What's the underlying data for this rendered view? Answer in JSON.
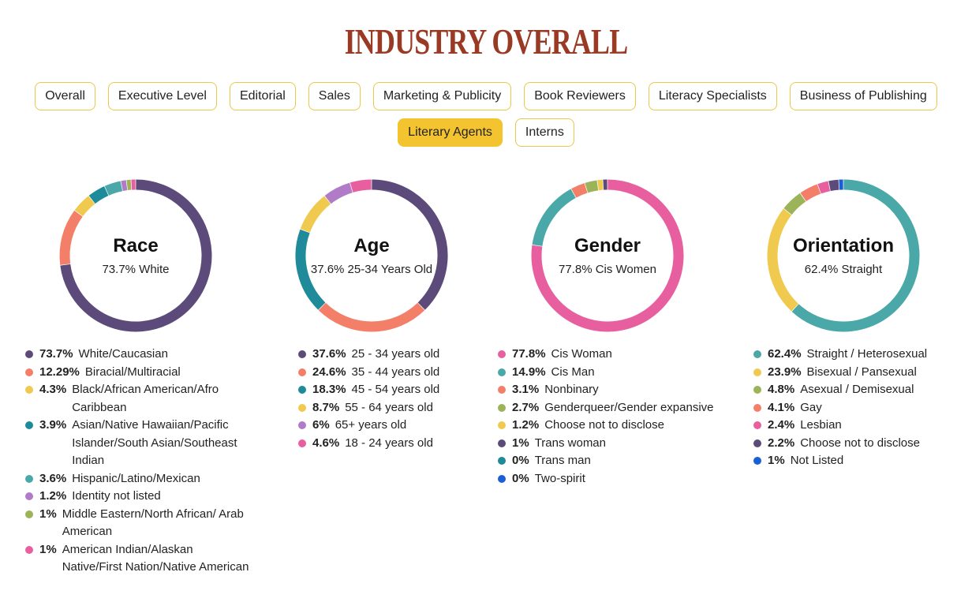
{
  "page": {
    "title": "INDUSTRY OVERALL"
  },
  "tabs": {
    "row1": [
      "Overall",
      "Executive Level",
      "Editorial",
      "Sales",
      "Marketing & Publicity",
      "Book Reviewers",
      "Literacy Specialists",
      "Business of Publishing"
    ],
    "row2": [
      "Literary Agents",
      "Interns"
    ],
    "active": "Literary Agents"
  },
  "chart_data": [
    {
      "type": "pie",
      "title": "Race",
      "subtitle": "73.7% White",
      "slices": [
        {
          "pct_label": "73.7%",
          "value": 73.7,
          "label": "White/Caucasian",
          "color": "#5c4a7a"
        },
        {
          "pct_label": "12.29%",
          "value": 12.29,
          "label": "Biracial/Multiracial",
          "color": "#f47f68"
        },
        {
          "pct_label": "4.3%",
          "value": 4.3,
          "label": "Black/African American/Afro Caribbean",
          "color": "#f0c94f"
        },
        {
          "pct_label": "3.9%",
          "value": 3.9,
          "label": "Asian/Native Hawaiian/Pacific Islander/South Asian/Southeast Indian",
          "color": "#1f8a99"
        },
        {
          "pct_label": "3.6%",
          "value": 3.6,
          "label": "Hispanic/Latino/Mexican",
          "color": "#4aa8a8"
        },
        {
          "pct_label": "1.2%",
          "value": 1.2,
          "label": "Identity not listed",
          "color": "#b07bc7"
        },
        {
          "pct_label": "1%",
          "value": 1,
          "label": "Middle Eastern/North African/ Arab American",
          "color": "#9db35a"
        },
        {
          "pct_label": "1%",
          "value": 1,
          "label": "American Indian/Alaskan Native/First Nation/Native American",
          "color": "#e85f9f"
        }
      ]
    },
    {
      "type": "pie",
      "title": "Age",
      "subtitle": "37.6% 25-34 Years Old",
      "slices": [
        {
          "pct_label": "37.6%",
          "value": 37.6,
          "label": "25 - 34 years old",
          "color": "#5c4a7a"
        },
        {
          "pct_label": "24.6%",
          "value": 24.6,
          "label": "35 - 44 years old",
          "color": "#f47f68"
        },
        {
          "pct_label": "18.3%",
          "value": 18.3,
          "label": "45 - 54 years old",
          "color": "#1f8a99"
        },
        {
          "pct_label": "8.7%",
          "value": 8.7,
          "label": "55 - 64 years old",
          "color": "#f0c94f"
        },
        {
          "pct_label": "6%",
          "value": 6,
          "label": "65+ years old",
          "color": "#b07bc7"
        },
        {
          "pct_label": "4.6%",
          "value": 4.6,
          "label": "18 - 24 years old",
          "color": "#e85f9f"
        }
      ]
    },
    {
      "type": "pie",
      "title": "Gender",
      "subtitle": "77.8% Cis Women",
      "slices": [
        {
          "pct_label": "77.8%",
          "value": 77.8,
          "label": "Cis Woman",
          "color": "#e85f9f"
        },
        {
          "pct_label": "14.9%",
          "value": 14.9,
          "label": "Cis Man",
          "color": "#4aa8a8"
        },
        {
          "pct_label": "3.1%",
          "value": 3.1,
          "label": "Nonbinary",
          "color": "#f47f68"
        },
        {
          "pct_label": "2.7%",
          "value": 2.7,
          "label": "Genderqueer/Gender expansive",
          "color": "#9db35a"
        },
        {
          "pct_label": "1.2%",
          "value": 1.2,
          "label": "Choose not to disclose",
          "color": "#f0c94f"
        },
        {
          "pct_label": "1%",
          "value": 1,
          "label": "Trans woman",
          "color": "#5c4a7a"
        },
        {
          "pct_label": "0%",
          "value": 0,
          "label": "Trans man",
          "color": "#1f8a99"
        },
        {
          "pct_label": "0%",
          "value": 0,
          "label": "Two-spirit",
          "color": "#1a5fd6"
        }
      ]
    },
    {
      "type": "pie",
      "title": "Orientation",
      "subtitle": "62.4% Straight",
      "slices": [
        {
          "pct_label": "62.4%",
          "value": 62.4,
          "label": "Straight / Heterosexual",
          "color": "#4aa8a8"
        },
        {
          "pct_label": "23.9%",
          "value": 23.9,
          "label": "Bisexual / Pansexual",
          "color": "#f0c94f"
        },
        {
          "pct_label": "4.8%",
          "value": 4.8,
          "label": "Asexual / Demisexual",
          "color": "#9db35a"
        },
        {
          "pct_label": "4.1%",
          "value": 4.1,
          "label": "Gay",
          "color": "#f47f68"
        },
        {
          "pct_label": "2.4%",
          "value": 2.4,
          "label": "Lesbian",
          "color": "#e85f9f"
        },
        {
          "pct_label": "2.2%",
          "value": 2.2,
          "label": "Choose not to disclose",
          "color": "#5c4a7a"
        },
        {
          "pct_label": "1%",
          "value": 1,
          "label": "Not Listed",
          "color": "#1a5fd6"
        }
      ]
    }
  ]
}
